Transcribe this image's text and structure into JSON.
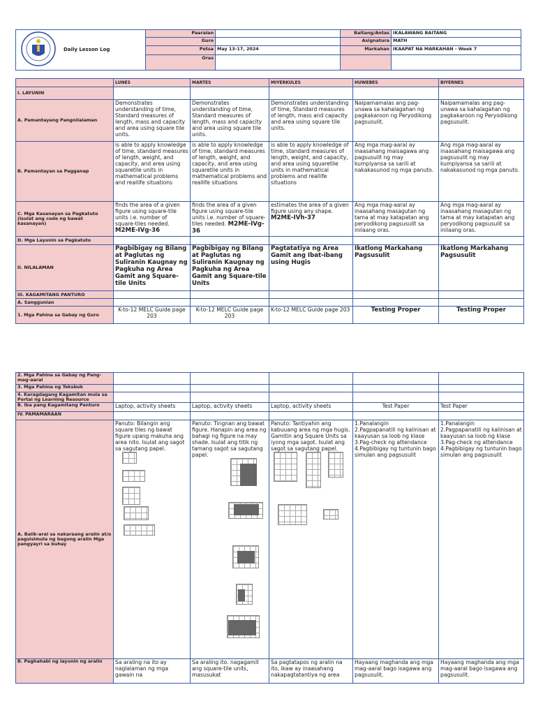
{
  "header": {
    "title": "Daily Lesson Log",
    "left": [
      {
        "label": "Paaralan",
        "value": ""
      },
      {
        "label": "Guro",
        "value": ""
      },
      {
        "label": "Petsa",
        "value": "May 13-17, 2024"
      },
      {
        "label": "Oras",
        "value": ""
      }
    ],
    "right": [
      {
        "label": "Baitang/Antas",
        "value": "IKALAWANG BAITANG"
      },
      {
        "label": "Asignatura",
        "value": "MATH"
      },
      {
        "label": "Markahan",
        "value": "IKAAPAT NA MARKAHAN - Week 7"
      },
      {
        "label": "",
        "value": ""
      }
    ]
  },
  "days": [
    "LUNES",
    "MARTES",
    "MIYERKULES",
    "HUWEBES",
    "BIYERNES"
  ],
  "rows1": [
    {
      "label": "I. LAYUNIN",
      "cells": [
        "",
        "",
        "",
        "",
        ""
      ]
    },
    {
      "label": "A. Pamantayang  Pangnilalaman",
      "cells": [
        "Demonstrates understanding of time, Standard measures of length, mass and capacity and area using square tile units.",
        "Demonstrates understanding of time, Standard measures of length, mass and capacity and area using square tile units.",
        "Demonstrates understanding of time, Standard measures of length, mass and capacity and area using square tile units.",
        "Naipamamalas ang pag-unawa sa kahalagahan ng pagkakaroon ng Peryodikong pagsusulit.",
        "Naipamamalas ang pag-unawa sa kahalagahan ng pagkakaroon ng Peryodikong pagsusulit."
      ]
    },
    {
      "label": "B. Pamantayan sa Pagganap",
      "cells": [
        "is able to apply knowledge of time, standard measures of length, weight, and capacity, and area using squaretile units in mathematical problems and reallife situations",
        "is able to apply knowledge of time, standard measures of length, weight, and capacity, and area using squaretile units in mathematical problems and reallife situations",
        "is able to apply knowledge of time, standard measures of length, weight, and capacity, and area using squaretile units in mathematical problems and reallife situations",
        "Ang mga mag-aaral ay inaasahang maisagawa ang pagsusulit ng may kumpiyansa sa sarili at nakakasunod ng mga panuto.",
        "Ang mga mag-aaral ay inaasahang maisagawa ang pagsusulit ng may kumpiyansa sa sarili at nakakasunod ng mga panuto."
      ]
    },
    {
      "label": "C. Mga Kasanayan sa Pagkatuto (Isulat ang code ng bawat kasanayan)",
      "cells": [
        "finds the area of a given figure using square-tile units i.e. number of square-tiles needed.",
        "finds the area of a given figure using square-tile units i.e. number of square-tiles needed.",
        "estimates the area of a given figure using any shape.",
        "Ang mga mag-aaral ay inaasahang masagutan ng tama at may katapatan ang peryodikong pagsusulit sa inilaang oras.",
        "Ang mga mag-aaral ay inaasahang masagutan ng tama at may katapatan ang peryodikong pagsusulit sa inilaang oras."
      ],
      "codes": [
        "M2ME-IVg-36",
        "M2ME-IVg-36",
        "M2ME-IVh-37"
      ]
    },
    {
      "label": "D. Mga Layunin sa Pagkatuto",
      "cells": [
        "",
        "",
        "",
        "",
        ""
      ]
    },
    {
      "label": "II. NILALAMAN",
      "cells": [
        "Pagbibigay ng Bilang at Paglutas ng Suliranin Kaugnay ng Pagkuha ng Area Gamit ang Square-tile Units",
        "Pagbibigay ng Bilang at Paglutas ng Suliranin Kaugnay ng Pagkuha ng Area Gamit ang Square-tile Units",
        "Pagtatatiya ng Area Gamit ang Ibat-ibang using Hugis",
        "Ikatlong Markahang Pagsusulit",
        "Ikatlong Markahang Pagsusulit"
      ]
    },
    {
      "label": "III. KAGAMITANG PANTURO",
      "cells": [
        "",
        "",
        "",
        "",
        ""
      ]
    },
    {
      "label": "A. Sanggunian",
      "cells": [
        "",
        "",
        "",
        "",
        ""
      ]
    },
    {
      "label": "1. Mga Pahina sa Gabay ng Guro",
      "cells": [
        "K-to-12 MELC Guide page 203",
        "K-to-12 MELC Guide page 203",
        "K-to-12 MELC Guide page 203",
        "Testing Proper",
        "Testing Proper"
      ]
    }
  ],
  "rows2": [
    {
      "label": "2. Mga Pahina sa Gabay ng Pang-mag-aaral",
      "cells": [
        "",
        "",
        "",
        "",
        ""
      ]
    },
    {
      "label": "3. Mga Pahina ng Teksbuk",
      "cells": [
        "",
        "",
        "",
        "",
        ""
      ]
    },
    {
      "label": "4. Karagdagang Kagamitan mula sa Portal ng Learning Resource",
      "cells": [
        "",
        "",
        "",
        "",
        ""
      ]
    },
    {
      "label": "B. Iba pang Kagamitang Panturo",
      "cells": [
        "Laptop, activity sheets",
        "Laptop, activity sheets",
        "Laptop, activity sheets",
        "Test Paper",
        "Test Paper"
      ]
    },
    {
      "label": "IV. PAMAMARAAN",
      "cells": [
        "",
        "",
        "",
        "",
        ""
      ]
    },
    {
      "label": "A. Balik-aral sa nakaraang aralin at/o pagsisimula ng bagong aralin Mga pangyayri sa buhay",
      "cells": [
        "Panuto: Bilangin ang square tiles ng bawat figure upang makuha ang area nito. Isulat ang sagot sa sagutang papel.",
        "Panuto: Tingnan ang bawat figure. Hanapin ang area ng bahagi ng figure na may shade. Isulat ang titik ng tamang sagot sa sagutang papel.",
        "Panuto: Tantiyahin ang kabuuang area ng mga hugis. Gamitin ang Square Units sa iyong mga sagot. Isulat ang sagot sa sagutang papel.",
        "1.Panalangin\n2.Pagpapanatili ng kalinisan at kaayusan sa loob ng klase\n3.Pag-check ng attendance\n4.Pagbibigay ng tuntunin bago simulan ang pagsusulit",
        "1.Panalangin\n2.Pagpapanatili ng kalinisan at kaayusan sa loob ng klase\n3.Pag-check ng attendance\n4.Pagbibigay ng tuntunin bago simulan ang pagsusulit"
      ]
    },
    {
      "label": "B. Paghahabi ng layunin ng aralin",
      "cells": [
        "Sa araling na ito ay naglalaman ng mga gawain na",
        "Sa araling ito. nagagamit ang square-tile units, masusukat",
        "Sa pagtatapos ng aralin na ito, ikaw ay inaasahang nakapagtatantiya ng area",
        "Hayaang maghanda ang mga mag-aaral bago isagawa ang pagsusulit.",
        "Hayaang maghanda ang mga mag-aaral bago isagawa ang pagsusulit."
      ]
    }
  ],
  "colors": {
    "border": "#3b5ca6",
    "label_bg": "#f4cccc"
  },
  "icons": {
    "logo": "deped-seal"
  }
}
